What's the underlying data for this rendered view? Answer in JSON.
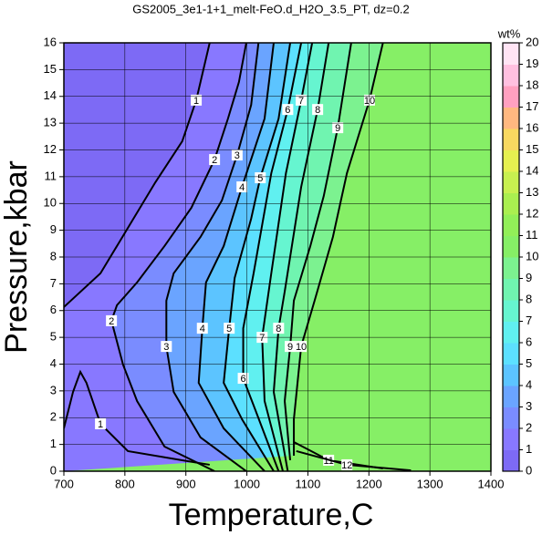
{
  "chart_data": {
    "type": "contour",
    "title": "GS2005_3e1-1+1_melt-FeO.d_H2O_3.5_PT, dz=0.2",
    "x_label": "Temperature,C",
    "y_label": "Pressure,kbar",
    "colorbar_label": "wt%",
    "xlim": [
      700,
      1400
    ],
    "ylim": [
      0,
      16
    ],
    "xticks": [
      700,
      800,
      900,
      1000,
      1100,
      1200,
      1300,
      1400
    ],
    "yticks": [
      0,
      1,
      2,
      3,
      4,
      5,
      6,
      7,
      8,
      9,
      10,
      11,
      12,
      13,
      14,
      15,
      16
    ],
    "grid": true,
    "clim": [
      0,
      20
    ],
    "cticks": [
      0,
      1,
      2,
      3,
      4,
      5,
      6,
      7,
      8,
      9,
      10,
      11,
      12,
      13,
      14,
      15,
      16,
      17,
      18,
      19,
      20
    ],
    "colormap": [
      "#7d6af5",
      "#8878ff",
      "#7a8cff",
      "#6aa4ff",
      "#5cc4ff",
      "#5ce0ff",
      "#60f0f0",
      "#66f5d0",
      "#70f4b0",
      "#7cf290",
      "#86ef66",
      "#92ef58",
      "#aaef50",
      "#c8f050",
      "#e6f050",
      "#f8d860",
      "#ffb880",
      "#ffa0c0",
      "#ffc0e0",
      "#ffe4f4"
    ],
    "contours": [
      {
        "level": 1,
        "x": [
          700,
          760,
          805,
          850,
          894,
          917,
          939,
          null,
          700,
          715,
          727,
          737,
          760,
          805,
          894,
          939
        ],
        "y": [
          6.13,
          7.39,
          9.09,
          10.79,
          12.32,
          13.86,
          16,
          null,
          1.6,
          2.96,
          3.71,
          3.3,
          1.77,
          0.75,
          0.41,
          0.24
        ]
      },
      {
        "level": 2,
        "x": [
          947,
          865,
          820,
          797,
          778,
          787,
          820,
          865,
          909,
          947,
          969,
          987,
          999
        ],
        "y": [
          0,
          0.92,
          2.62,
          3.98,
          5.62,
          6.2,
          7.05,
          8.41,
          9.84,
          11.64,
          13.17,
          14.54,
          16
        ]
      },
      {
        "level": 3,
        "x": [
          999,
          924,
          880,
          868,
          868,
          880,
          924,
          959,
          984,
          1007,
          1019
        ],
        "y": [
          0,
          1.26,
          2.96,
          4.66,
          6.37,
          7.39,
          8.75,
          10.11,
          11.81,
          13.68,
          16
        ]
      },
      {
        "level": 4,
        "x": [
          1029,
          962,
          921,
          927,
          933,
          962,
          992,
          1029,
          1044
        ],
        "y": [
          0,
          1.6,
          3.3,
          5.34,
          7.05,
          8.41,
          10.62,
          13.17,
          16
        ]
      },
      {
        "level": 5,
        "x": [
          1044,
          992,
          962,
          971,
          980,
          1007,
          1022,
          1052,
          1071
        ],
        "y": [
          0,
          1.94,
          3.3,
          5.34,
          7.22,
          9.43,
          10.96,
          13.17,
          16
        ]
      },
      {
        "level": 6,
        "x": [
          1052,
          1014,
          994,
          994,
          1011,
          1040,
          1067,
          1089
        ],
        "y": [
          0,
          2.28,
          3.47,
          5.34,
          7.39,
          11.13,
          13.51,
          16
        ]
      },
      {
        "level": 7,
        "x": [
          1059,
          1029,
          1025,
          1040,
          1064,
          1089,
          1107
        ],
        "y": [
          0,
          2.62,
          5.0,
          7.39,
          11.13,
          13.86,
          16
        ]
      },
      {
        "level": 8,
        "x": [
          1067,
          1044,
          1052,
          1062,
          1089,
          1116,
          1134
        ],
        "y": [
          0,
          2.96,
          5.34,
          6.71,
          10.62,
          13.51,
          16
        ]
      },
      {
        "level": 9,
        "x": [
          1071,
          1062,
          1071,
          1077,
          1104,
          1126,
          1149,
          1171
        ],
        "y": [
          0.41,
          2.62,
          4.66,
          6.37,
          8.41,
          10.28,
          12.83,
          16
        ]
      },
      {
        "level": 10,
        "x": [
          1077,
          1077,
          1089,
          1111,
          1141,
          1164,
          1201,
          1223
        ],
        "y": [
          0.58,
          1.94,
          4.66,
          6.37,
          8.75,
          11.13,
          13.86,
          16
        ]
      },
      {
        "level": 11,
        "x": [
          1077,
          1134,
          1223
        ],
        "y": [
          1.09,
          0.41,
          0.1
        ]
      },
      {
        "level": 12,
        "x": [
          1081,
          1164,
          1269
        ],
        "y": [
          0.75,
          0.24,
          0.03
        ]
      }
    ]
  }
}
